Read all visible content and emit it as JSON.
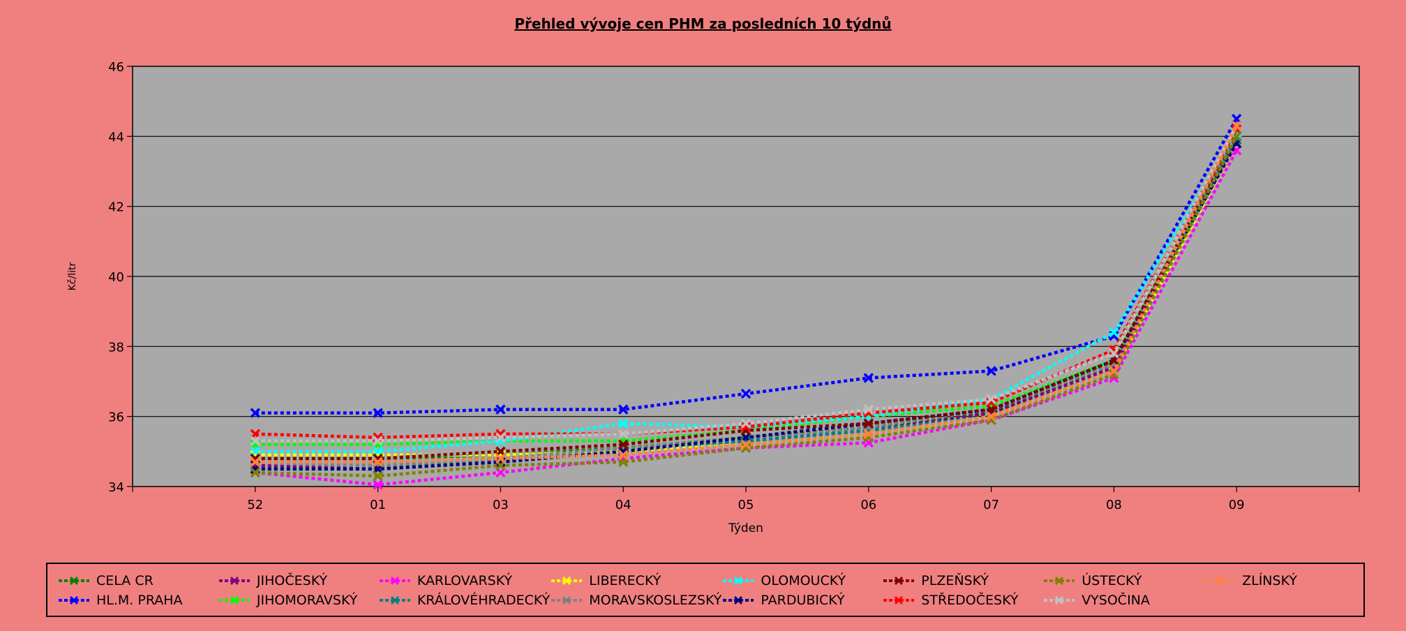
{
  "chart_data": {
    "type": "line",
    "title": "Přehled vývoje cen PHM za posledních 10 týdnů",
    "xlabel": "Týden",
    "ylabel": "Kč/litr",
    "ylim": [
      34,
      46
    ],
    "yticks": [
      "34",
      "36",
      "38",
      "40",
      "42",
      "44",
      "46"
    ],
    "categories": [
      "",
      "52",
      "01",
      "03",
      "04",
      "05",
      "06",
      "07",
      "08",
      "09",
      ""
    ],
    "grid": true,
    "legend_position": "bottom",
    "series": [
      {
        "name": "CELA CR",
        "color": "#008000",
        "values": [
          null,
          34.8,
          34.8,
          34.9,
          35.1,
          35.4,
          35.7,
          36.1,
          37.5,
          44.0,
          null
        ]
      },
      {
        "name": "HL.M. PRAHA",
        "color": "#0000FF",
        "values": [
          null,
          36.1,
          36.1,
          36.2,
          36.2,
          36.65,
          37.1,
          37.3,
          38.3,
          44.5,
          null
        ]
      },
      {
        "name": "JIHOČESKÝ",
        "color": "#800080",
        "values": [
          null,
          34.6,
          34.5,
          34.7,
          35.0,
          35.3,
          35.6,
          36.1,
          37.4,
          43.9,
          null
        ]
      },
      {
        "name": "JIHOMORAVSKÝ",
        "color": "#00FF00",
        "values": [
          null,
          35.2,
          35.2,
          35.3,
          35.3,
          35.6,
          36.0,
          36.3,
          37.6,
          44.0,
          null
        ]
      },
      {
        "name": "KARLOVARSKÝ",
        "color": "#FF00FF",
        "values": [
          null,
          34.4,
          34.05,
          34.4,
          34.8,
          35.1,
          35.25,
          35.9,
          37.1,
          43.6,
          null
        ]
      },
      {
        "name": "KRÁLOVÉHRADECKÝ",
        "color": "#008080",
        "values": [
          null,
          34.5,
          34.5,
          34.8,
          35.0,
          35.3,
          35.6,
          36.0,
          37.3,
          43.9,
          null
        ]
      },
      {
        "name": "LIBERECKÝ",
        "color": "#FFFF00",
        "values": [
          null,
          34.9,
          34.9,
          34.9,
          35.0,
          35.2,
          35.5,
          36.0,
          37.3,
          43.8,
          null
        ]
      },
      {
        "name": "MORAVSKOSLEZSKÝ",
        "color": "#808080",
        "values": [
          null,
          34.7,
          34.6,
          34.8,
          35.1,
          35.4,
          35.7,
          36.2,
          37.5,
          44.1,
          null
        ]
      },
      {
        "name": "OLOMOUCKÝ",
        "color": "#00FFFF",
        "values": [
          null,
          35.0,
          35.0,
          35.3,
          35.8,
          35.7,
          36.0,
          36.5,
          38.4,
          44.1,
          null
        ]
      },
      {
        "name": "PARDUBICKÝ",
        "color": "#000080",
        "values": [
          null,
          34.5,
          34.5,
          34.7,
          35.0,
          35.4,
          35.8,
          36.2,
          37.6,
          43.8,
          null
        ]
      },
      {
        "name": "PLZEŇSKÝ",
        "color": "#800000",
        "values": [
          null,
          34.8,
          34.8,
          35.0,
          35.2,
          35.6,
          35.8,
          36.2,
          37.6,
          44.0,
          null
        ]
      },
      {
        "name": "STŘEDOČESKÝ",
        "color": "#FF0000",
        "values": [
          null,
          35.5,
          35.4,
          35.5,
          35.5,
          35.7,
          36.1,
          36.4,
          37.9,
          44.2,
          null
        ]
      },
      {
        "name": "ÚSTECKÝ",
        "color": "#808000",
        "values": [
          null,
          34.4,
          34.3,
          34.6,
          34.7,
          35.1,
          35.4,
          35.9,
          37.2,
          44.0,
          null
        ]
      },
      {
        "name": "VYSOČINA",
        "color": "#C0C0C0",
        "values": [
          null,
          35.3,
          35.3,
          35.4,
          35.5,
          35.8,
          36.2,
          36.5,
          37.8,
          44.3,
          null
        ]
      },
      {
        "name": "ZLÍNSKÝ",
        "color": "#FF8040",
        "values": [
          null,
          34.7,
          34.7,
          34.8,
          34.9,
          35.2,
          35.5,
          36.0,
          37.3,
          44.3,
          null
        ]
      }
    ]
  }
}
